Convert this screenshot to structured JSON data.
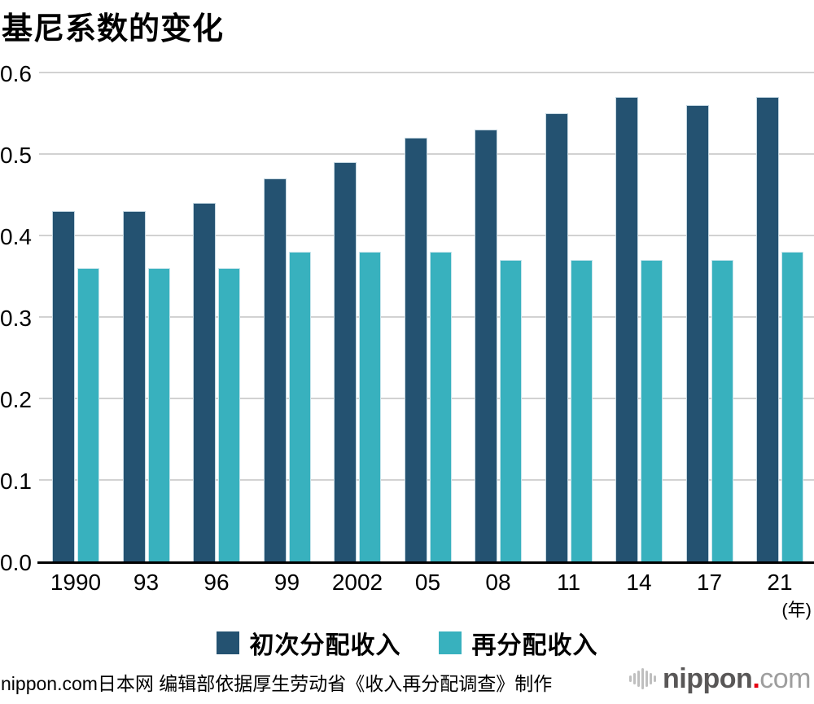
{
  "title": "基尼系数的变化",
  "chart_data": {
    "type": "bar",
    "categories": [
      "1990",
      "93",
      "96",
      "99",
      "2002",
      "05",
      "08",
      "11",
      "14",
      "17",
      "21"
    ],
    "series": [
      {
        "name": "初次分配收入",
        "color": "#245271",
        "values": [
          0.43,
          0.43,
          0.44,
          0.47,
          0.49,
          0.52,
          0.53,
          0.55,
          0.57,
          0.56,
          0.57
        ]
      },
      {
        "name": "再分配收入",
        "color": "#38b1be",
        "values": [
          0.36,
          0.36,
          0.36,
          0.38,
          0.38,
          0.38,
          0.37,
          0.37,
          0.37,
          0.37,
          0.38
        ]
      }
    ],
    "yticks": [
      "0.0",
      "0.1",
      "0.2",
      "0.3",
      "0.4",
      "0.5",
      "0.6"
    ],
    "ylim": [
      0,
      0.6
    ],
    "x_unit_label": "(年)",
    "grid": true,
    "legend_position": "bottom"
  },
  "footer": {
    "source_text": "nippon.com日本网 编辑部依据厚生劳动省《收入再分配调查》制作"
  },
  "logo": {
    "brand": "nippon",
    "dot": ".",
    "tld": "com"
  },
  "colors": {
    "primary": "#245271",
    "secondary": "#38b1be",
    "gridline": "#d2d2d2",
    "axis": "#000000",
    "logo_dot": "#e60012"
  }
}
